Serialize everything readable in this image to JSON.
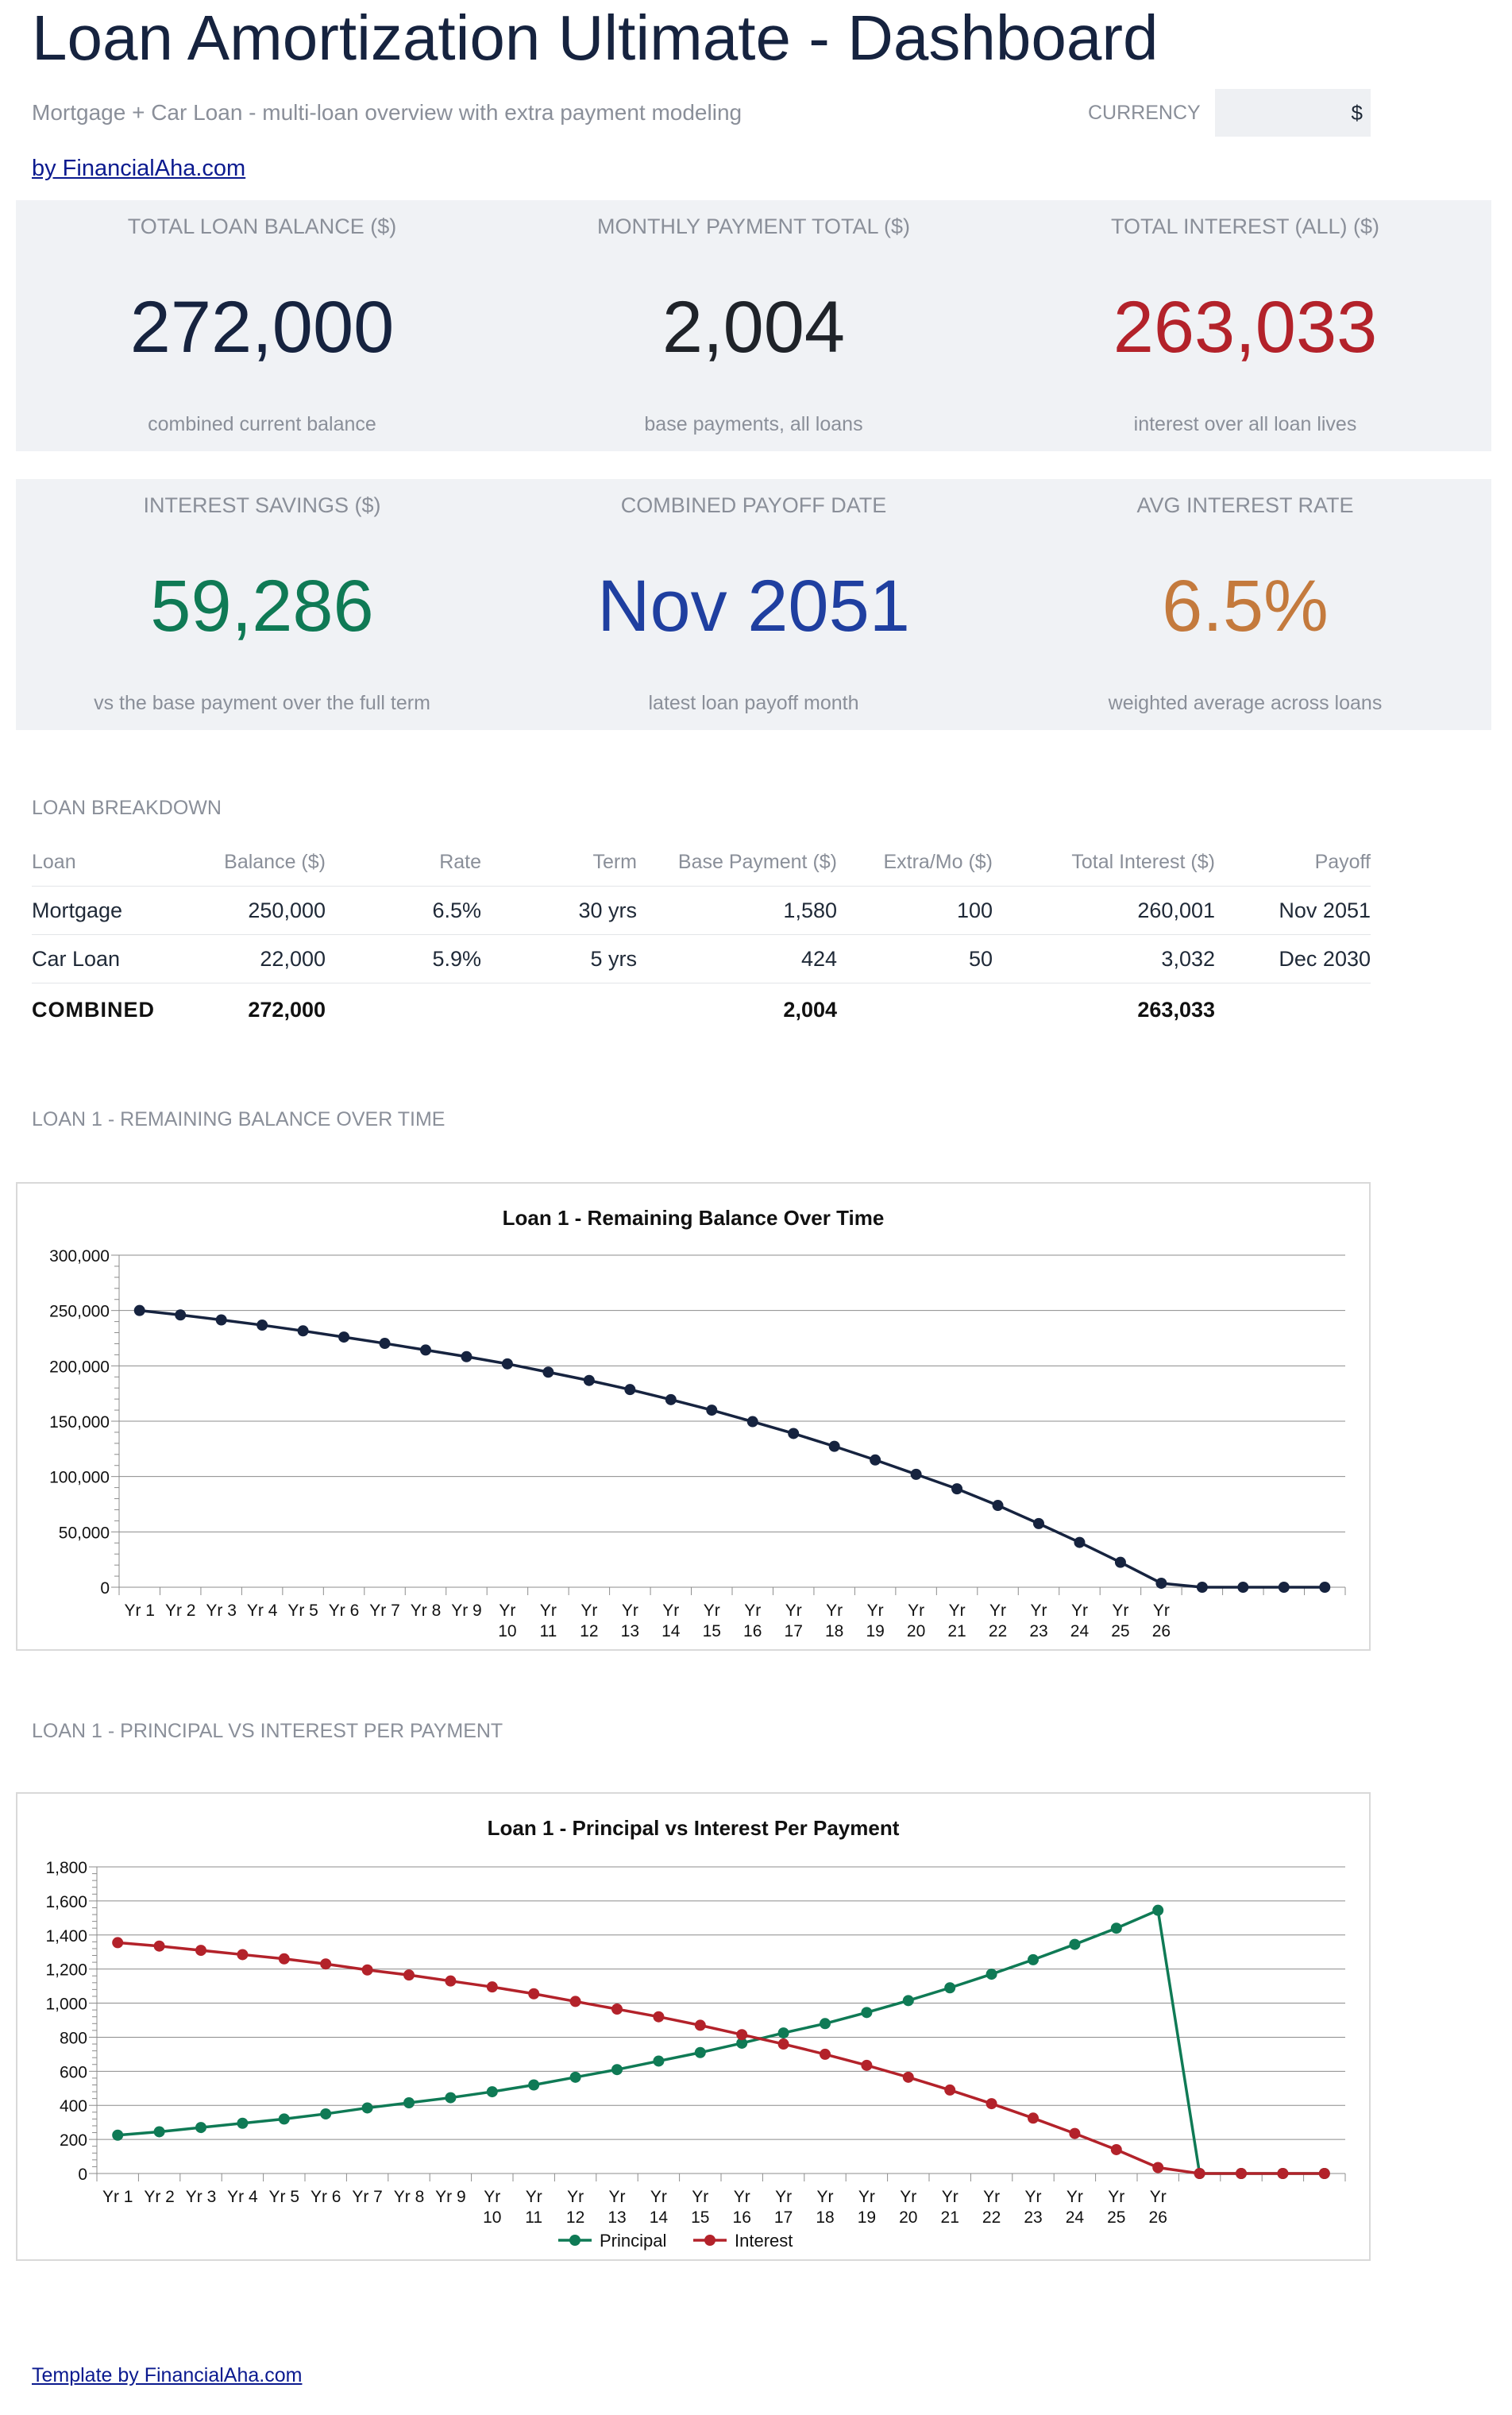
{
  "header": {
    "title": "Loan Amortization Ultimate - Dashboard",
    "subtitle": "Mortgage + Car Loan - multi-loan overview with extra payment modeling",
    "currency_label": "CURRENCY",
    "currency_value": "$",
    "link": "by FinancialAha.com"
  },
  "kpis_row1": [
    {
      "label": "TOTAL LOAN BALANCE ($)",
      "value": "272,000",
      "sub": "combined current balance",
      "color": "#16233f"
    },
    {
      "label": "MONTHLY PAYMENT TOTAL ($)",
      "value": "2,004",
      "sub": "base payments, all loans",
      "color": "#1f2329"
    },
    {
      "label": "TOTAL INTEREST (ALL) ($)",
      "value": "263,033",
      "sub": "interest over all loan lives",
      "color": "#b3222a"
    }
  ],
  "kpis_row2": [
    {
      "label": "INTEREST SAVINGS ($)",
      "value": "59,286",
      "sub": "vs the base payment over the full term",
      "color": "#0f7a55"
    },
    {
      "label": "COMBINED PAYOFF DATE",
      "value": "Nov 2051",
      "sub": "latest loan payoff month",
      "color": "#1f3fa0"
    },
    {
      "label": "AVG INTEREST RATE",
      "value": "6.5%",
      "sub": "weighted average across loans",
      "color": "#c47a3d"
    }
  ],
  "breakdown": {
    "section": "LOAN BREAKDOWN",
    "headers": [
      "Loan",
      "Balance ($)",
      "Rate",
      "Term",
      "Base Payment ($)",
      "Extra/Mo ($)",
      "Total Interest ($)",
      "Payoff"
    ],
    "rows": [
      [
        "Mortgage",
        "250,000",
        "6.5%",
        "30 yrs",
        "1,580",
        "100",
        "260,001",
        "Nov 2051"
      ],
      [
        "Car Loan",
        "22,000",
        "5.9%",
        "5 yrs",
        "424",
        "50",
        "3,032",
        "Dec 2030"
      ]
    ],
    "combined": [
      "COMBINED",
      "272,000",
      "",
      "",
      "2,004",
      "",
      "263,033",
      ""
    ]
  },
  "section_balance": "LOAN 1 - REMAINING BALANCE OVER TIME",
  "section_pi": "LOAN 1 - PRINCIPAL VS INTEREST PER PAYMENT",
  "chart_data": [
    {
      "type": "line",
      "title": "Loan 1 - Remaining Balance Over Time",
      "categories": [
        "Yr 1",
        "Yr 2",
        "Yr 3",
        "Yr 4",
        "Yr 5",
        "Yr 6",
        "Yr 7",
        "Yr 8",
        "Yr 9",
        "Yr 10",
        "Yr 11",
        "Yr 12",
        "Yr 13",
        "Yr 14",
        "Yr 15",
        "Yr 16",
        "Yr 17",
        "Yr 18",
        "Yr 19",
        "Yr 20",
        "Yr 21",
        "Yr 22",
        "Yr 23",
        "Yr 24",
        "Yr 25",
        "Yr 26",
        "",
        "",
        "",
        ""
      ],
      "series": [
        {
          "values": [
            250000,
            246000,
            241500,
            236800,
            231600,
            226000,
            220300,
            214300,
            208300,
            201800,
            194300,
            186800,
            178600,
            169500,
            160000,
            149600,
            138900,
            127300,
            115000,
            102000,
            88900,
            73900,
            57500,
            40500,
            22500,
            3600,
            0,
            0,
            0,
            0
          ],
          "color": "#16233f"
        }
      ],
      "ylim": [
        0,
        300000
      ],
      "yticks": [
        "0",
        "50,000",
        "100,000",
        "150,000",
        "200,000",
        "250,000",
        "300,000"
      ],
      "grid": true
    },
    {
      "type": "line",
      "title": "Loan 1 - Principal vs Interest Per Payment",
      "categories": [
        "Yr 1",
        "Yr 2",
        "Yr 3",
        "Yr 4",
        "Yr 5",
        "Yr 6",
        "Yr 7",
        "Yr 8",
        "Yr 9",
        "Yr 10",
        "Yr 11",
        "Yr 12",
        "Yr 13",
        "Yr 14",
        "Yr 15",
        "Yr 16",
        "Yr 17",
        "Yr 18",
        "Yr 19",
        "Yr 20",
        "Yr 21",
        "Yr 22",
        "Yr 23",
        "Yr 24",
        "Yr 25",
        "Yr 26",
        "",
        "",
        "",
        ""
      ],
      "series": [
        {
          "name": "Principal",
          "values": [
            225,
            245,
            270,
            295,
            320,
            350,
            385,
            415,
            445,
            480,
            520,
            565,
            610,
            660,
            710,
            765,
            825,
            880,
            945,
            1015,
            1090,
            1170,
            1255,
            1345,
            1440,
            1545,
            0,
            0,
            0,
            0
          ],
          "color": "#0f7a55"
        },
        {
          "name": "Interest",
          "values": [
            1355,
            1335,
            1310,
            1285,
            1260,
            1230,
            1195,
            1165,
            1130,
            1095,
            1055,
            1010,
            965,
            920,
            870,
            815,
            760,
            700,
            635,
            565,
            490,
            410,
            325,
            235,
            140,
            35,
            0,
            0,
            0,
            0
          ],
          "color": "#b3222a"
        }
      ],
      "ylim": [
        0,
        1800
      ],
      "yticks": [
        "0",
        "200",
        "400",
        "600",
        "800",
        "1,000",
        "1,200",
        "1,400",
        "1,600",
        "1,800"
      ],
      "legend": "bottom",
      "grid": true
    }
  ],
  "footer": "Template by FinancialAha.com"
}
